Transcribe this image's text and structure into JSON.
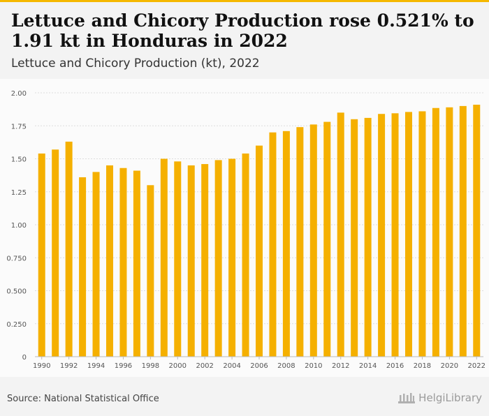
{
  "header": {
    "title": "Lettuce and Chicory Production rose 0.521% to 1.91 kt in Honduras in 2022",
    "subtitle": "Lettuce and Chicory Production (kt), 2022"
  },
  "footer": {
    "source": "Source: National Statistical Office",
    "logo_text": "HelgiLibrary"
  },
  "colors": {
    "accent": "#f5b800",
    "bar": "#f5b000",
    "grid": "#dddddd",
    "axis_text": "#555555"
  },
  "chart_data": {
    "type": "bar",
    "categories": [
      "1990",
      "1991",
      "1992",
      "1993",
      "1994",
      "1995",
      "1996",
      "1997",
      "1998",
      "1999",
      "2000",
      "2001",
      "2002",
      "2003",
      "2004",
      "2005",
      "2006",
      "2007",
      "2008",
      "2009",
      "2010",
      "2011",
      "2012",
      "2013",
      "2014",
      "2015",
      "2016",
      "2017",
      "2018",
      "2019",
      "2020",
      "2021",
      "2022"
    ],
    "values": [
      1.54,
      1.57,
      1.63,
      1.36,
      1.4,
      1.45,
      1.43,
      1.41,
      1.3,
      1.5,
      1.48,
      1.45,
      1.46,
      1.49,
      1.5,
      1.54,
      1.6,
      1.7,
      1.71,
      1.74,
      1.76,
      1.78,
      1.85,
      1.8,
      1.81,
      1.84,
      1.845,
      1.855,
      1.86,
      1.885,
      1.89,
      1.9,
      1.91
    ],
    "x_tick_labels": [
      "1990",
      "1992",
      "1994",
      "1996",
      "1998",
      "2000",
      "2002",
      "2004",
      "2006",
      "2008",
      "2010",
      "2012",
      "2014",
      "2016",
      "2018",
      "2020",
      "2022"
    ],
    "y_ticks": [
      0,
      0.25,
      0.5,
      0.75,
      1.0,
      1.25,
      1.5,
      1.75,
      2.0
    ],
    "y_tick_labels": [
      "0",
      "0.250",
      "0.500",
      "0.750",
      "1.00",
      "1.25",
      "1.50",
      "1.75",
      "2.00"
    ],
    "ylim": [
      0,
      2.0
    ],
    "xlabel": "",
    "ylabel": "",
    "grid": true
  }
}
